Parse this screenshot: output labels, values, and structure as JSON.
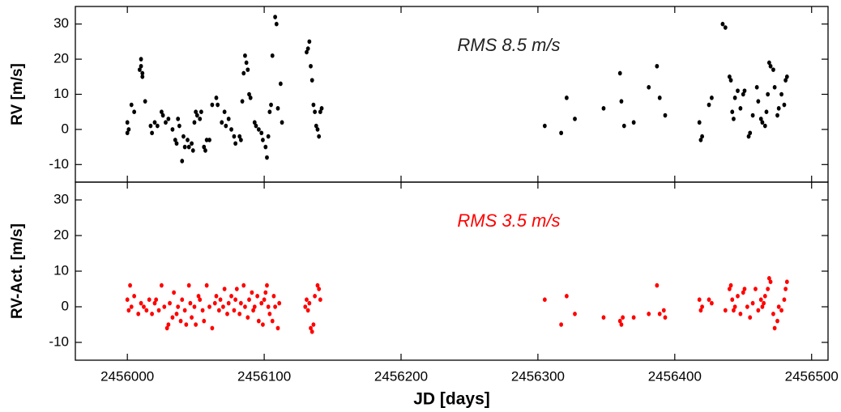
{
  "chart_data": [
    {
      "type": "scatter",
      "ylabel": "RV [m/s]",
      "annotation": "RMS 8.5 m/s",
      "annotation_color": "#222222",
      "color": "#000000",
      "xlim": [
        2455962,
        2456512
      ],
      "ylim": [
        -15,
        35
      ],
      "yticks": [
        -10,
        0,
        10,
        20,
        30
      ],
      "x": [
        2456000,
        2456000,
        2456001,
        2456003,
        2456005,
        2456009,
        2456010,
        2456010,
        2456011,
        2456011,
        2456013,
        2456017,
        2456018,
        2456020,
        2456022,
        2456025,
        2456026,
        2456028,
        2456030,
        2456033,
        2456035,
        2456036,
        2456037,
        2456038,
        2456040,
        2456041,
        2456042,
        2456044,
        2456045,
        2456047,
        2456048,
        2456049,
        2456050,
        2456051,
        2456053,
        2456054,
        2456056,
        2456057,
        2456058,
        2456060,
        2456062,
        2456065,
        2456066,
        2456069,
        2456071,
        2456072,
        2456074,
        2456076,
        2456078,
        2456079,
        2456082,
        2456083,
        2456084,
        2456085,
        2456086,
        2456087,
        2456088,
        2456089,
        2456090,
        2456093,
        2456094,
        2456096,
        2456098,
        2456099,
        2456101,
        2456102,
        2456103,
        2456104,
        2456105,
        2456106,
        2456108,
        2456109,
        2456110,
        2456112,
        2456113,
        2456131,
        2456132,
        2456133,
        2456134,
        2456135,
        2456136,
        2456137,
        2456138,
        2456139,
        2456140,
        2456141,
        2456142,
        2456305,
        2456317,
        2456321,
        2456327,
        2456348,
        2456360,
        2456361,
        2456363,
        2456370,
        2456381,
        2456387,
        2456389,
        2456393,
        2456418,
        2456419,
        2456420,
        2456425,
        2456427,
        2456435,
        2456437,
        2456440,
        2456441,
        2456442,
        2456443,
        2456444,
        2456446,
        2456448,
        2456450,
        2456451,
        2456454,
        2456455,
        2456457,
        2456460,
        2456461,
        2456463,
        2456464,
        2456466,
        2456467,
        2456468,
        2456469,
        2456470,
        2456472,
        2456473,
        2456475,
        2456476,
        2456478,
        2456480,
        2456481,
        2456482
      ],
      "values": [
        2,
        -1,
        0,
        7,
        5,
        17,
        20,
        18,
        16,
        15,
        8,
        1,
        -1,
        2,
        1,
        5,
        4,
        2,
        3,
        0,
        -3,
        -4,
        3,
        1,
        -9,
        -2,
        -5,
        -3,
        -5,
        -4,
        -6,
        2,
        5,
        4,
        3,
        5,
        -5,
        -6,
        -3,
        -3,
        7,
        9,
        7,
        2,
        5,
        1,
        3,
        0,
        -2,
        -4,
        -2,
        -3,
        8,
        16,
        21,
        19,
        17,
        10,
        9,
        2,
        1,
        0,
        -1,
        -3,
        -5,
        -8,
        -2,
        5,
        7,
        21,
        32,
        30,
        6,
        13,
        2,
        22,
        23,
        25,
        18,
        14,
        7,
        5,
        1,
        0,
        -2,
        5,
        6,
        1,
        -1,
        9,
        3,
        6,
        16,
        8,
        1,
        2,
        12,
        18,
        9,
        4,
        2,
        -3,
        -2,
        7,
        9,
        30,
        29,
        15,
        14,
        5,
        3,
        9,
        11,
        6,
        10,
        11,
        -2,
        -1,
        4,
        12,
        8,
        3,
        2,
        1,
        5,
        10,
        19,
        18,
        17,
        12,
        4,
        6,
        10,
        7,
        14,
        15
      ]
    },
    {
      "type": "scatter",
      "ylabel": "RV-Act. [m/s]",
      "xlabel": "JD [days]",
      "annotation": "RMS 3.5 m/s",
      "annotation_color": "#ff0000",
      "color": "#ff0000",
      "xlim": [
        2455962,
        2456512
      ],
      "ylim": [
        -15,
        35
      ],
      "yticks": [
        -10,
        0,
        10,
        20,
        30
      ],
      "xticks": [
        2456000,
        2456100,
        2456200,
        2456300,
        2456400,
        2456500
      ],
      "x": [
        2456000,
        2456001,
        2456002,
        2456003,
        2456005,
        2456008,
        2456010,
        2456012,
        2456014,
        2456016,
        2456018,
        2456020,
        2456021,
        2456023,
        2456025,
        2456027,
        2456029,
        2456030,
        2456031,
        2456033,
        2456034,
        2456036,
        2456037,
        2456039,
        2456040,
        2456042,
        2456043,
        2456045,
        2456046,
        2456047,
        2456049,
        2456050,
        2456052,
        2456053,
        2456055,
        2456056,
        2456058,
        2456060,
        2456062,
        2456064,
        2456065,
        2456067,
        2456068,
        2456070,
        2456071,
        2456073,
        2456074,
        2456076,
        2456078,
        2456079,
        2456080,
        2456082,
        2456083,
        2456085,
        2456086,
        2456088,
        2456089,
        2456091,
        2456092,
        2456093,
        2456095,
        2456096,
        2456098,
        2456099,
        2456100,
        2456101,
        2456102,
        2456103,
        2456104,
        2456106,
        2456107,
        2456108,
        2456110,
        2456111,
        2456130,
        2456131,
        2456132,
        2456133,
        2456134,
        2456135,
        2456136,
        2456137,
        2456139,
        2456140,
        2456141,
        2456305,
        2456317,
        2456321,
        2456327,
        2456348,
        2456360,
        2456361,
        2456362,
        2456370,
        2456381,
        2456387,
        2456389,
        2456392,
        2456393,
        2456418,
        2456419,
        2456420,
        2456425,
        2456427,
        2456437,
        2456440,
        2456441,
        2456442,
        2456443,
        2456444,
        2456446,
        2456448,
        2456450,
        2456451,
        2456453,
        2456455,
        2456457,
        2456459,
        2456461,
        2456463,
        2456464,
        2456465,
        2456466,
        2456468,
        2456469,
        2456470,
        2456472,
        2456473,
        2456475,
        2456476,
        2456478,
        2456480,
        2456481,
        2456482
      ],
      "values": [
        2,
        -1,
        6,
        0,
        3,
        -2,
        1,
        0,
        -1,
        2,
        -2,
        1,
        2,
        -1,
        6,
        0,
        -6,
        -5,
        1,
        -3,
        4,
        -2,
        0,
        -4,
        2,
        -1,
        -5,
        6,
        1,
        -3,
        0,
        -5,
        3,
        2,
        -1,
        -4,
        6,
        0,
        -6,
        1,
        3,
        -1,
        2,
        0,
        5,
        -2,
        1,
        3,
        -1,
        2,
        5,
        -2,
        1,
        6,
        0,
        -3,
        2,
        4,
        -1,
        0,
        3,
        -4,
        1,
        -5,
        2,
        4,
        6,
        0,
        -2,
        -4,
        3,
        0,
        -6,
        1,
        0,
        2,
        -1,
        1,
        -6,
        -7,
        -5,
        3,
        6,
        5,
        2,
        2,
        -5,
        3,
        -2,
        -3,
        -4,
        -5,
        -3,
        -3,
        -2,
        6,
        -2,
        -1,
        -3,
        2,
        -1,
        0,
        2,
        1,
        -1,
        5,
        6,
        2,
        -1,
        0,
        3,
        -2,
        4,
        5,
        0,
        -3,
        1,
        5,
        -1,
        2,
        0,
        1,
        3,
        5,
        8,
        7,
        -2,
        -6,
        -4,
        0,
        -1,
        2,
        5,
        7
      ]
    }
  ]
}
